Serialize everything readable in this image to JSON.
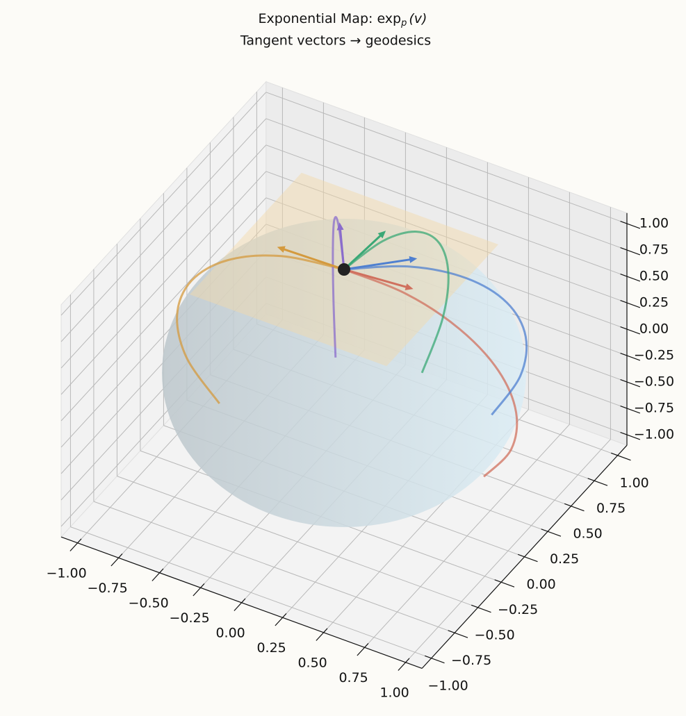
{
  "chart_data": {
    "type": "geodesic3d",
    "title": [
      "Exponential Map: exp",
      "p",
      "(v)"
    ],
    "subtitle": "Tangent vectors → geodesics",
    "point": [
      0,
      0,
      1
    ],
    "point_color": "#222222",
    "xlim": [
      -1.1,
      1.1
    ],
    "ylim": [
      -1.1,
      1.1
    ],
    "zlim": [
      -1.1,
      1.1
    ],
    "xticks": [
      {
        "value": -1,
        "label": "−1.00"
      },
      {
        "value": -0.75,
        "label": "−0.75"
      },
      {
        "value": -0.5,
        "label": "−0.50"
      },
      {
        "value": -0.25,
        "label": "−0.25"
      },
      {
        "value": 0,
        "label": "0.00"
      },
      {
        "value": 0.25,
        "label": "0.25"
      },
      {
        "value": 0.5,
        "label": "0.50"
      },
      {
        "value": 0.75,
        "label": "0.75"
      },
      {
        "value": 1,
        "label": "1.00"
      }
    ],
    "yticks": [
      {
        "value": -1,
        "label": "−1.00"
      },
      {
        "value": -0.75,
        "label": "−0.75"
      },
      {
        "value": -0.5,
        "label": "−0.50"
      },
      {
        "value": -0.25,
        "label": "−0.25"
      },
      {
        "value": 0,
        "label": "0.00"
      },
      {
        "value": 0.25,
        "label": "0.25"
      },
      {
        "value": 0.5,
        "label": "0.50"
      },
      {
        "value": 0.75,
        "label": "0.75"
      },
      {
        "value": 1,
        "label": "1.00"
      }
    ],
    "zticks": [
      {
        "value": -1,
        "label": "−1.00"
      },
      {
        "value": -0.75,
        "label": "−0.75"
      },
      {
        "value": -0.5,
        "label": "−0.50"
      },
      {
        "value": -0.25,
        "label": "−0.25"
      },
      {
        "value": 0,
        "label": "0.00"
      },
      {
        "value": 0.25,
        "label": "0.25"
      },
      {
        "value": 0.5,
        "label": "0.50"
      },
      {
        "value": 0.75,
        "label": "0.75"
      },
      {
        "value": 1,
        "label": "1.00"
      }
    ],
    "grid": true,
    "series": [
      {
        "color": "#d0705e",
        "vector": [
          0.398,
          0.042,
          0
        ],
        "x": [
          0,
          0.357,
          0.666,
          0.887,
          0.99,
          0.961,
          0.804
        ],
        "y": [
          0,
          0.038,
          0.07,
          0.094,
          0.104,
          0.101,
          0.085
        ],
        "z": [
          1,
          0.934,
          0.743,
          0.454,
          0.105,
          -0.26,
          -0.589
        ]
      },
      {
        "color": "#4f80d0",
        "vector": [
          0.288,
          0.278,
          0
        ],
        "x": [
          0,
          0.258,
          0.481,
          0.641,
          0.715,
          0.694,
          0.581
        ],
        "y": [
          0,
          0.249,
          0.465,
          0.619,
          0.691,
          0.671,
          0.562
        ],
        "z": [
          1,
          0.934,
          0.743,
          0.454,
          0.105,
          -0.26,
          -0.589
        ]
      },
      {
        "color": "#3aa876",
        "vector": [
          0.028,
          0.399,
          0
        ],
        "x": [
          0,
          0.026,
          0.049,
          0.064,
          0.07,
          0.066,
          0.052
        ],
        "y": [
          0,
          0.373,
          0.693,
          0.911,
          0.997,
          0.939,
          0.745
        ],
        "z": [
          1,
          0.927,
          0.72,
          0.409,
          0.037,
          -0.339,
          -0.666
        ]
      },
      {
        "color": "#d49a3e",
        "vector": [
          -0.4,
          -0.014,
          0
        ],
        "x": [
          0,
          -0.374,
          -0.693,
          -0.912,
          -0.998,
          -0.94,
          -0.745
        ],
        "y": [
          0,
          -0.013,
          -0.024,
          -0.032,
          -0.035,
          -0.033,
          -0.026
        ],
        "z": [
          1,
          0.927,
          0.72,
          0.409,
          0.037,
          -0.339,
          -0.666
        ]
      },
      {
        "color": "#8a6ccc",
        "vector": [
          -0.218,
          0.336,
          0
        ],
        "x": [
          0,
          -0.204,
          -0.378,
          -0.498,
          -0.544,
          -0.513,
          -0.407
        ],
        "y": [
          0,
          0.314,
          0.582,
          0.766,
          0.838,
          0.79,
          0.626
        ],
        "z": [
          1,
          0.927,
          0.72,
          0.409,
          0.037,
          -0.339,
          -0.666
        ]
      }
    ]
  }
}
